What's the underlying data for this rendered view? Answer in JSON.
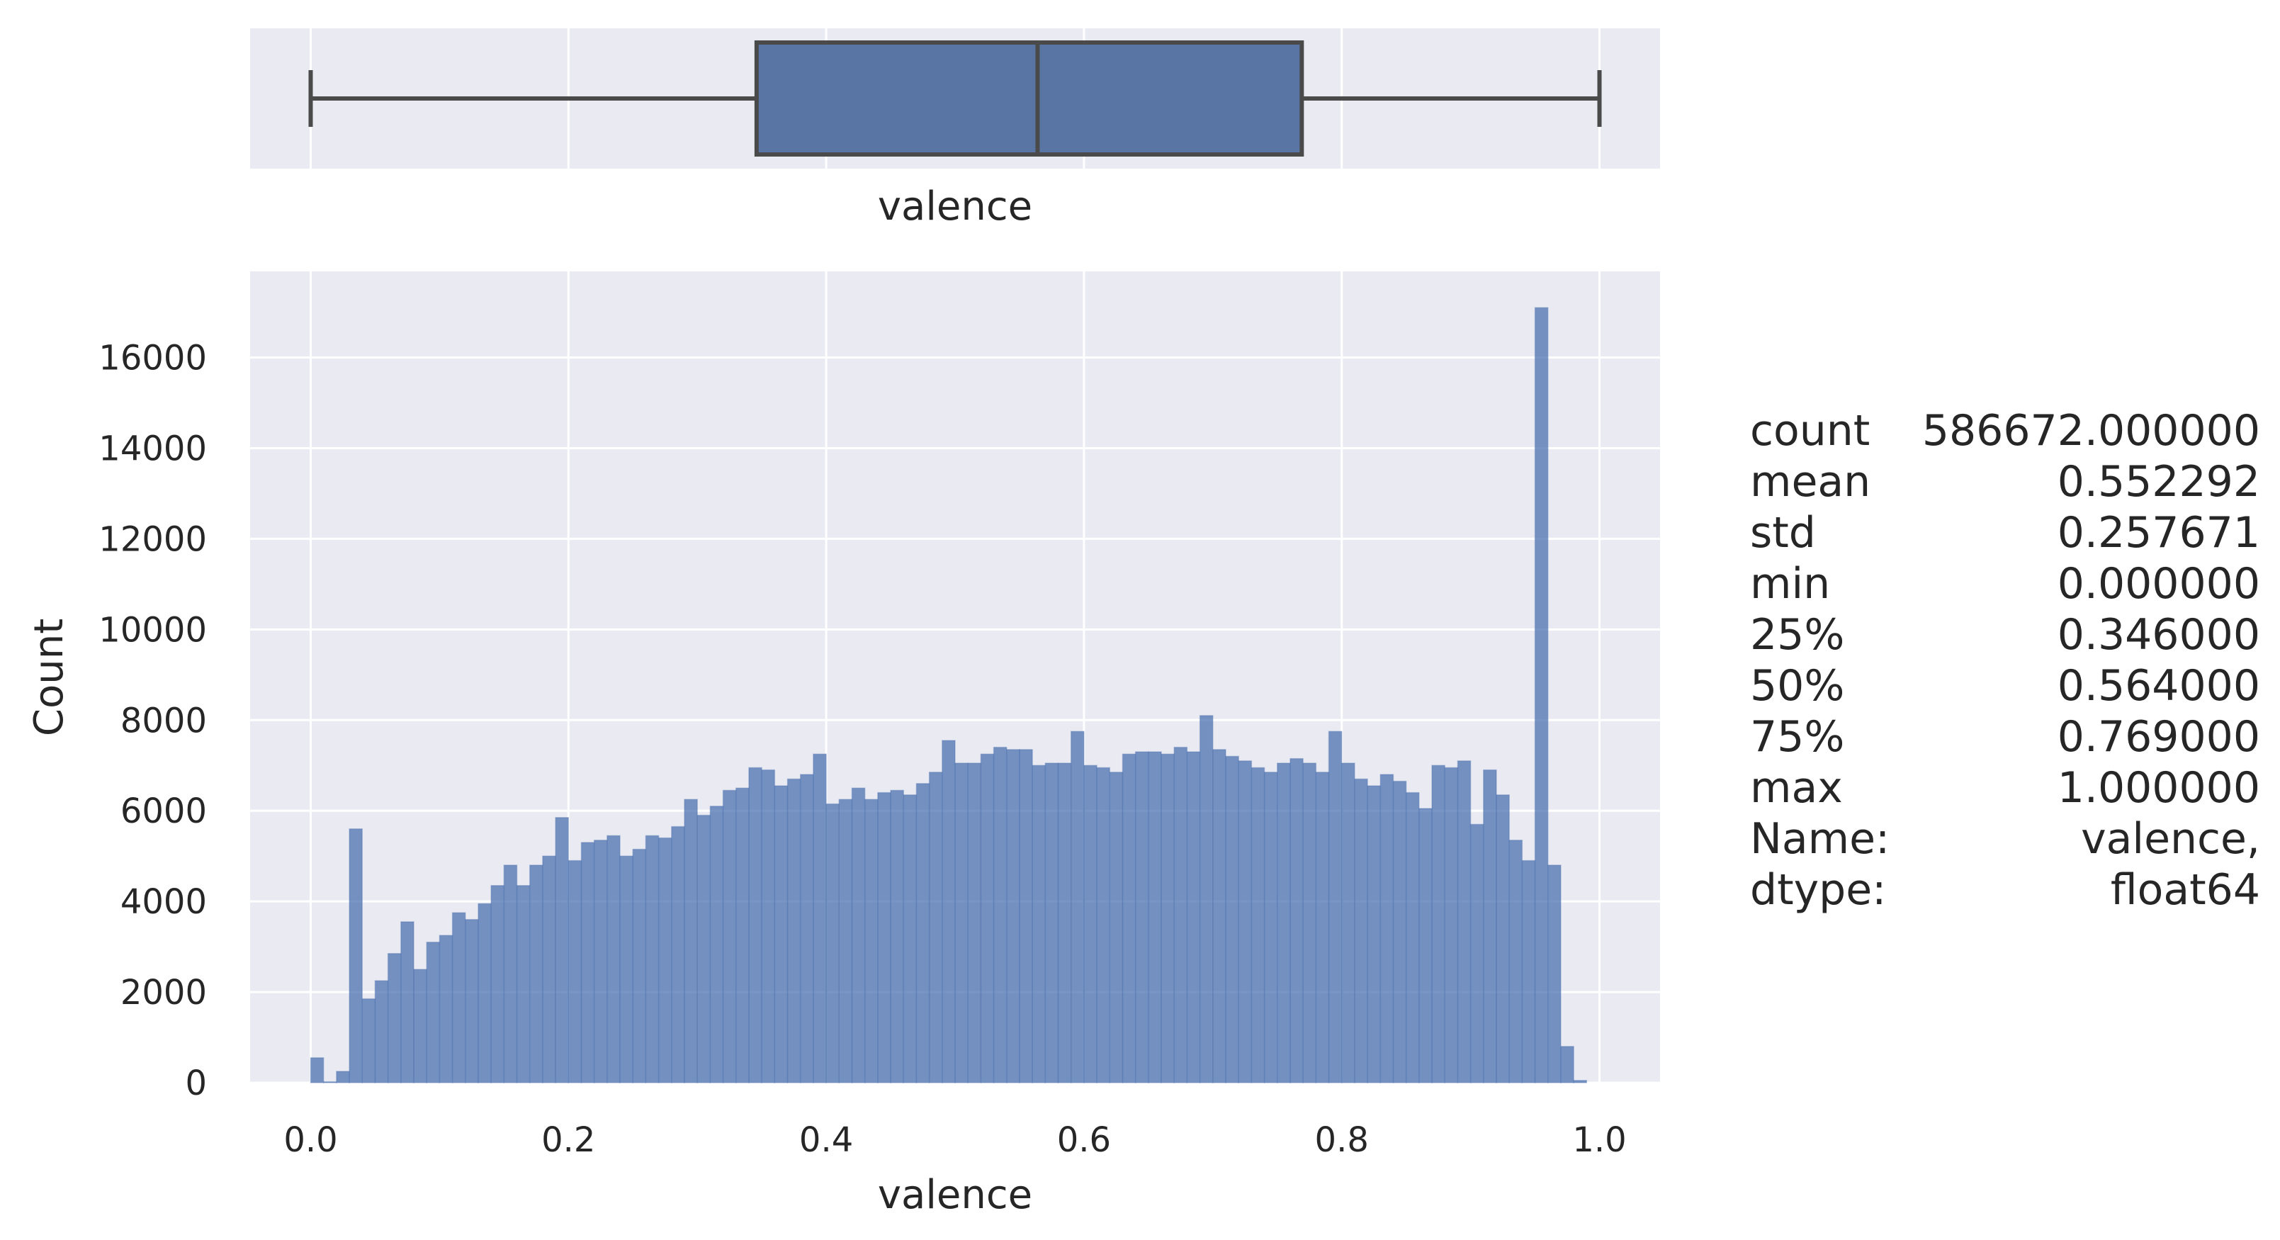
{
  "colors": {
    "panel_bg": "#eaeaf2",
    "grid": "#ffffff",
    "bar_fill": "#4c72b0",
    "box_fill": "#5875a4",
    "box_line": "#4a4a4a"
  },
  "chart_data": [
    {
      "type": "box",
      "xlabel": "valence",
      "xlim": [
        -0.047,
        1.047
      ],
      "whisker_low": 0.0,
      "q1": 0.346,
      "median": 0.564,
      "q3": 0.769,
      "whisker_high": 1.0
    },
    {
      "type": "bar",
      "xlabel": "valence",
      "ylabel": "Count",
      "xlim": [
        -0.047,
        1.047
      ],
      "ylim": [
        0,
        17900
      ],
      "grid": true,
      "xticks": [
        "0.0",
        "0.2",
        "0.4",
        "0.6",
        "0.8",
        "1.0"
      ],
      "yticks": [
        "0",
        "2000",
        "4000",
        "6000",
        "8000",
        "10000",
        "12000",
        "14000",
        "16000"
      ],
      "bin_width": 0.01,
      "bin_start": 0.0,
      "values": [
        550,
        20,
        250,
        5600,
        1850,
        2250,
        2850,
        3550,
        2500,
        3100,
        3250,
        3750,
        3600,
        3950,
        4350,
        4800,
        4350,
        4800,
        5000,
        5850,
        4900,
        5300,
        5350,
        5450,
        5000,
        5150,
        5450,
        5400,
        5650,
        6250,
        5900,
        6100,
        6450,
        6500,
        6950,
        6900,
        6550,
        6700,
        6800,
        7250,
        6150,
        6250,
        6500,
        6250,
        6400,
        6450,
        6350,
        6600,
        6850,
        7550,
        7050,
        7050,
        7250,
        7400,
        7350,
        7350,
        7000,
        7050,
        7050,
        7750,
        7000,
        6950,
        6850,
        7250,
        7300,
        7300,
        7250,
        7400,
        7300,
        8100,
        7350,
        7200,
        7100,
        6950,
        6850,
        7050,
        7150,
        7050,
        6850,
        7750,
        7050,
        6700,
        6550,
        6800,
        6650,
        6400,
        6050,
        7000,
        6950,
        7100,
        5700,
        6900,
        6350,
        5350,
        4900,
        17100,
        4800,
        800,
        50
      ]
    }
  ],
  "stats": [
    {
      "key": "count",
      "value": "586672.000000"
    },
    {
      "key": "mean",
      "value": "0.552292"
    },
    {
      "key": "std",
      "value": "0.257671"
    },
    {
      "key": "min",
      "value": "0.000000"
    },
    {
      "key": "25%",
      "value": "0.346000"
    },
    {
      "key": "50%",
      "value": "0.564000"
    },
    {
      "key": "75%",
      "value": "0.769000"
    },
    {
      "key": "max",
      "value": "1.000000"
    },
    {
      "key": "Name:",
      "value": "valence,"
    },
    {
      "key": "dtype:",
      "value": "float64"
    }
  ]
}
